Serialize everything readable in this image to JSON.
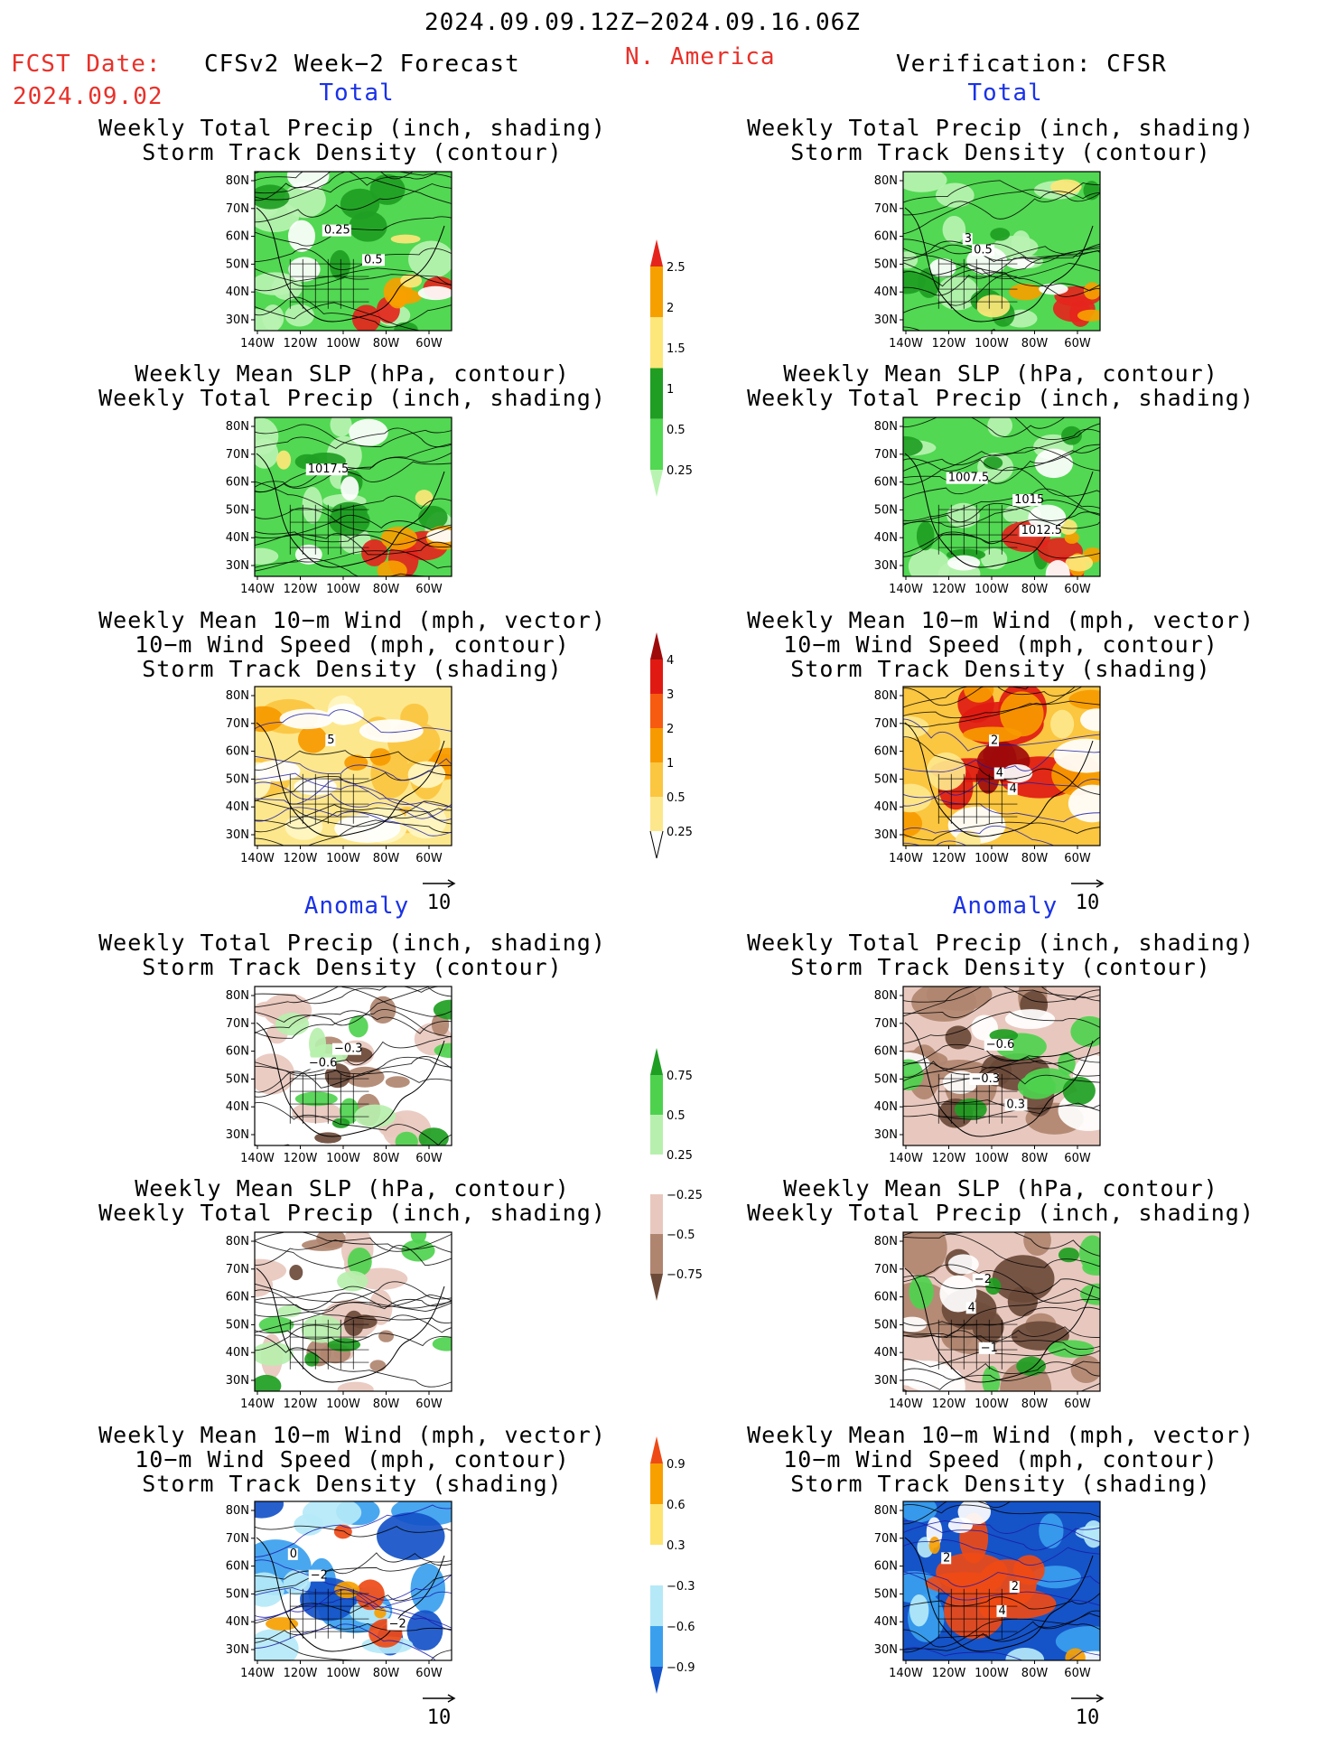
{
  "header": {
    "period": "2024.09.09.12Z−2024.09.16.06Z",
    "fcst_label": "FCST Date:",
    "fcst_date": "2024.09.02",
    "model": "CFSv2 Week−2 Forecast",
    "region": "N. America",
    "verification": "Verification: CFSR"
  },
  "sections": {
    "total_left": "Total",
    "total_right": "Total",
    "anomaly_left": "Anomaly",
    "anomaly_right": "Anomaly"
  },
  "titles": {
    "precip_track": [
      "Weekly Total Precip (inch, shading)",
      "Storm Track Density (contour)"
    ],
    "slp_precip": [
      "Weekly Mean SLP (hPa, contour)",
      "Weekly Total Precip (inch, shading)"
    ],
    "wind_track": [
      "Weekly Mean 10−m Wind (mph, vector)",
      "10−m Wind Speed (mph, contour)",
      "Storm Track Density (shading)"
    ]
  },
  "axes": {
    "lat_labels": [
      "80N",
      "70N",
      "60N",
      "50N",
      "40N",
      "30N"
    ],
    "lon_labels": [
      "140W",
      "120W",
      "100W",
      "80W",
      "60W"
    ]
  },
  "vector_reference": "10",
  "colors": {
    "ocean_blue": "#1f5fd8",
    "contour_black": "#000000",
    "contour_blue": "#1a1aa8"
  },
  "map_contour_labels": {
    "fc_precip": [
      "0.25",
      "0.5"
    ],
    "ob_precip": [
      "3",
      "0.5"
    ],
    "fc_slp": [
      "1017.5"
    ],
    "ob_slp": [
      "1007.5",
      "1015",
      "1012.5"
    ],
    "fc_wind": [
      "5"
    ],
    "ob_wind": [
      "2",
      "4",
      "4"
    ],
    "fc_aprecip": [
      "−0.3",
      "−0.6"
    ],
    "ob_aprecip": [
      "−0.6",
      "−0.3",
      "0.3"
    ],
    "ob_aslp": [
      "−2",
      "4",
      "−1"
    ],
    "fc_awind": [
      "0",
      "−2",
      "−2"
    ],
    "ob_awind": [
      "2",
      "2",
      "4"
    ]
  },
  "colorbars": {
    "precip_total": {
      "labels": [
        "2.5",
        "2",
        "1.5",
        "1",
        "0.5",
        "0.25"
      ],
      "colors": [
        "#e5251d",
        "#f6a000",
        "#fde77a",
        "#1f9e23",
        "#52d852",
        "#b9f3b2"
      ]
    },
    "storm_total": {
      "labels": [
        "4",
        "3",
        "2",
        "1",
        "0.5",
        "0.25"
      ],
      "colors": [
        "#9e0a0a",
        "#e01a12",
        "#f65b10",
        "#f79a00",
        "#fbc640",
        "#fde78c",
        "#fff6c2"
      ]
    },
    "precip_anom": {
      "labels": [
        "0.75",
        "0.5",
        "0.25",
        "−0.25",
        "−0.5",
        "−0.75"
      ],
      "colors": [
        "#1e9e22",
        "#4ed24e",
        "#b7f0ae",
        "#ffffff",
        "#e8c8be",
        "#b08570",
        "#6b4a3a"
      ]
    },
    "storm_anom": {
      "labels": [
        "0.9",
        "0.6",
        "0.3",
        "−0.3",
        "−0.6",
        "−0.9"
      ],
      "colors": [
        "#ee4a16",
        "#f7a000",
        "#fde370",
        "#ffffff",
        "#b5e9f8",
        "#3aa0ee",
        "#1553c8"
      ]
    }
  }
}
